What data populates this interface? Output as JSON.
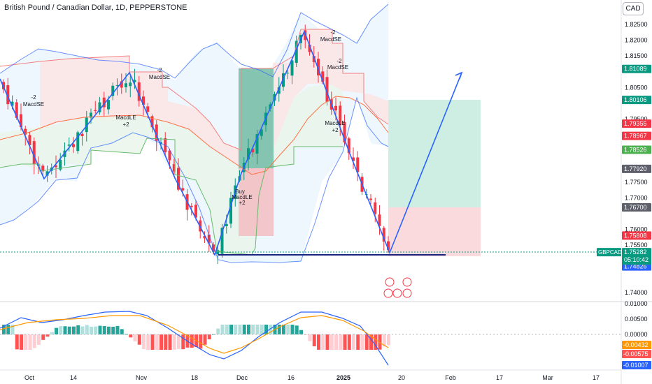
{
  "header": {
    "symbol_title": "British Pound / Canadian Dollar, 1D, PEPPERSTONE",
    "currency_button": "CAD"
  },
  "colors": {
    "up": "#089981",
    "down": "#f23645",
    "bb_line": "#2962ff",
    "zigzag": "#2962ff",
    "macd": "#2962ff",
    "signal": "#ff9800",
    "hist_up": "#26a69a",
    "hist_up_light": "#b2dfdb",
    "hist_down": "#ff5252",
    "hist_down_light": "#ffcdd2"
  },
  "chart_data": {
    "type": "candlestick",
    "price_ticks": [
      "1.82500",
      "1.82000",
      "1.81500",
      "1.80500",
      "1.79500",
      "1.77500",
      "1.77000",
      "1.76000",
      "1.75500",
      "1.74000"
    ],
    "macd_ticks": [
      "0.01000",
      "0.00500",
      "0.00000"
    ],
    "x_ticks": [
      "Oct",
      "14",
      "Nov",
      "18",
      "Dec",
      "16",
      "2025",
      "20",
      "Feb",
      "17",
      "Mar",
      "17"
    ],
    "price_labels": [
      {
        "value": 1.81089,
        "text": "1.81089",
        "color": "#089981"
      },
      {
        "value": 1.80106,
        "text": "1.80106",
        "color": "#089981"
      },
      {
        "value": 1.79355,
        "text": "1.79355",
        "color": "#f23645"
      },
      {
        "value": 1.78967,
        "text": "1.78967",
        "color": "#f23645"
      },
      {
        "value": 1.78526,
        "text": "1.78526",
        "color": "#4caf50"
      },
      {
        "value": 1.7792,
        "text": "1.77920",
        "color": "#5d606b"
      },
      {
        "value": 1.767,
        "text": "1.76700",
        "color": "#5d606b"
      },
      {
        "value": 1.75808,
        "text": "1.75808",
        "color": "#f23645"
      },
      {
        "value": 1.75155,
        "text": "1.75155",
        "color": "#f23645"
      },
      {
        "value": 1.74826,
        "text": "1.74826",
        "color": "#2962ff"
      }
    ],
    "current": {
      "symbol": "GBPCAD",
      "price": "1.75282",
      "countdown": "05:10:42",
      "value": 1.75282
    },
    "macd_labels": [
      {
        "value": -0.00432,
        "text": "-0.00432",
        "color": "#ff9800"
      },
      {
        "value": -0.00575,
        "text": "-0.00575",
        "color": "#ff5252"
      },
      {
        "value": -0.01007,
        "text": "-0.01007",
        "color": "#2962ff"
      }
    ],
    "annotations": [
      {
        "text": "-2",
        "x": 48,
        "y": 142
      },
      {
        "text": "MacdSE",
        "x": 48,
        "y": 152
      },
      {
        "text": "MacdLE",
        "x": 180,
        "y": 171
      },
      {
        "text": "+2",
        "x": 180,
        "y": 181
      },
      {
        "text": "-2",
        "x": 228,
        "y": 103
      },
      {
        "text": "MacdSE",
        "x": 228,
        "y": 113
      },
      {
        "text": "Buy",
        "x": 343,
        "y": 277
      },
      {
        "text": "MacdLE",
        "x": 346,
        "y": 285
      },
      {
        "text": "+2",
        "x": 346,
        "y": 293
      },
      {
        "text": "-2",
        "x": 476,
        "y": 49
      },
      {
        "text": "MacdSE",
        "x": 473,
        "y": 59
      },
      {
        "text": "-2",
        "x": 485,
        "y": 90
      },
      {
        "text": "MacdSE",
        "x": 483,
        "y": 99
      },
      {
        "text": "MacdLE",
        "x": 479,
        "y": 179
      },
      {
        "text": "+2",
        "x": 479,
        "y": 189
      }
    ]
  }
}
